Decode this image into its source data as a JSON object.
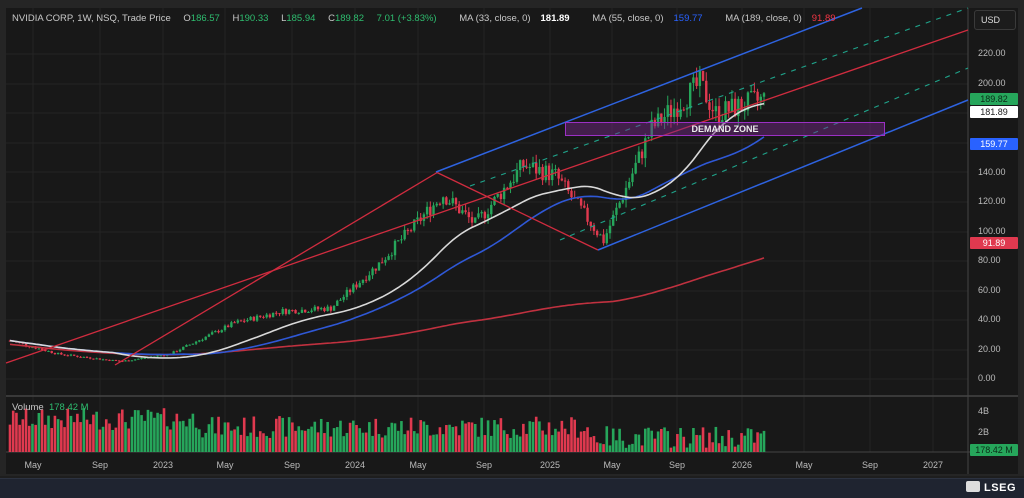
{
  "header": {
    "symbol": "NVIDIA CORP, 1W, NSQ, Trade Price",
    "o_label": "O",
    "open": "186.57",
    "h_label": "H",
    "high": "190.33",
    "l_label": "L",
    "low": "185.94",
    "c_label": "C",
    "close": "189.82",
    "change": "7.01 (+3.83%)",
    "ma1_label": "MA (33, close, 0)",
    "ma1_value": "181.89",
    "ma2_label": "MA (55, close, 0)",
    "ma2_value": "159.77",
    "ma3_label": "MA (189, close, 0)",
    "ma3_value": "91.89"
  },
  "currency": "USD",
  "annotation": {
    "demand_zone": "DEMAND ZONE"
  },
  "price_tags": {
    "close": "189.82",
    "ma33": "181.89",
    "ma55": "159.77",
    "ma189": "91.89"
  },
  "volume": {
    "label": "Volume",
    "value": "178.42 M",
    "ticks": [
      "4B",
      "2B"
    ],
    "tag": "178.42 M"
  },
  "brand": "LSEG",
  "colors": {
    "up": "#26a65b",
    "down": "#e0394f",
    "ma33": "#d9d9d9",
    "ma55": "#2f58d6",
    "ma189": "#c0313f",
    "channel": "#2e63e0",
    "zone": "#9b30c4"
  },
  "chart_data": {
    "type": "candlestick",
    "title": "NVIDIA CORP, 1W, NSQ, Trade Price",
    "xlabel": "",
    "ylabel": "USD",
    "x_ticks": [
      "May",
      "Sep",
      "2023",
      "May",
      "Sep",
      "2024",
      "May",
      "Sep",
      "2025",
      "May",
      "Sep",
      "2026",
      "May",
      "Sep",
      "2027"
    ],
    "y_ticks": [
      "220.00",
      "200.00",
      "140.00",
      "120.00",
      "100.00",
      "80.00",
      "60.00",
      "40.00",
      "20.00",
      "0.00"
    ],
    "ylim": [
      -5,
      245
    ],
    "last_bar": {
      "open": 186.57,
      "high": 190.33,
      "low": 185.94,
      "close": 189.82,
      "change": 7.01,
      "change_pct": 3.83
    },
    "series": [
      {
        "name": "Price (approx. weekly closes)",
        "points": [
          [
            "2022-03",
            26
          ],
          [
            "2022-06",
            17
          ],
          [
            "2022-09",
            13
          ],
          [
            "2022-10",
            12
          ],
          [
            "2023-01",
            17
          ],
          [
            "2023-05",
            38
          ],
          [
            "2023-08",
            46
          ],
          [
            "2023-11",
            48
          ],
          [
            "2024-02",
            78
          ],
          [
            "2024-03",
            90
          ],
          [
            "2024-06",
            125
          ],
          [
            "2024-08",
            105
          ],
          [
            "2024-11",
            145
          ],
          [
            "2025-01",
            138
          ],
          [
            "2025-04",
            94
          ],
          [
            "2025-07",
            170
          ],
          [
            "2025-10",
            200
          ],
          [
            "2025-11",
            180
          ],
          [
            "2026-02",
            189.82
          ]
        ]
      },
      {
        "name": "MA (33, close, 0)",
        "last": 181.89
      },
      {
        "name": "MA (55, close, 0)",
        "last": 159.77
      },
      {
        "name": "MA (189, close, 0)",
        "last": 91.89
      },
      {
        "name": "Volume",
        "last": "178.42 M",
        "ylim": [
          "0",
          "4B+"
        ]
      }
    ],
    "annotations": [
      "DEMAND ZONE (~165–175)",
      "Ascending channel (blue)",
      "Trendlines (red)",
      "Dashed parallel lines (teal)"
    ],
    "grid": true,
    "legend_position": "top-left"
  }
}
